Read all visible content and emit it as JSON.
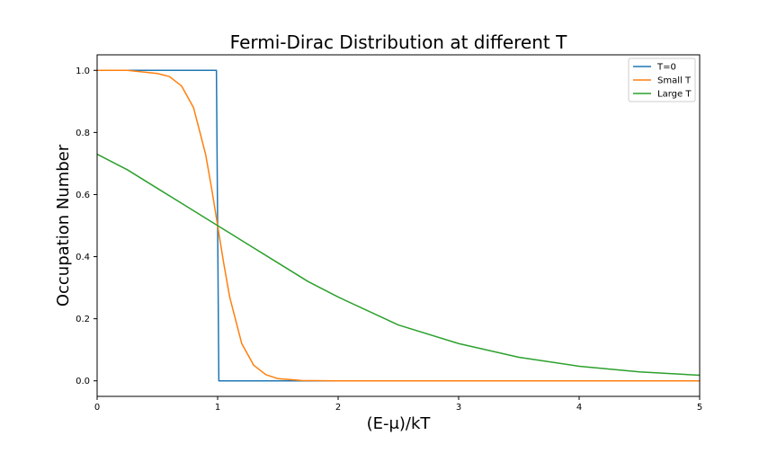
{
  "chart_data": {
    "type": "line",
    "title": "Fermi-Dirac Distribution at different T",
    "xlabel": "(E-μ)/kT",
    "ylabel": "Occupation Number",
    "xlim": [
      0,
      5
    ],
    "ylim": [
      -0.05,
      1.05
    ],
    "x_ticks": [
      "0",
      "1",
      "2",
      "3",
      "4",
      "5"
    ],
    "y_ticks": [
      "0.0",
      "0.2",
      "0.4",
      "0.6",
      "0.8",
      "1.0"
    ],
    "grid": false,
    "legend_position": "top-right",
    "series": [
      {
        "name": "T=0",
        "color": "#1f77b4",
        "points": [
          [
            0,
            1.0
          ],
          [
            0.99,
            1.0
          ],
          [
            1.01,
            0.0
          ],
          [
            5,
            0.0
          ]
        ]
      },
      {
        "name": "Small T",
        "color": "#ff7f0e",
        "points": [
          [
            0,
            1.0
          ],
          [
            0.25,
            1.0
          ],
          [
            0.5,
            0.99
          ],
          [
            0.6,
            0.98
          ],
          [
            0.7,
            0.95
          ],
          [
            0.8,
            0.88
          ],
          [
            0.9,
            0.73
          ],
          [
            0.95,
            0.62
          ],
          [
            1.0,
            0.5
          ],
          [
            1.05,
            0.38
          ],
          [
            1.1,
            0.27
          ],
          [
            1.2,
            0.12
          ],
          [
            1.3,
            0.05
          ],
          [
            1.4,
            0.02
          ],
          [
            1.5,
            0.007
          ],
          [
            1.7,
            0.001
          ],
          [
            2.0,
            0.0
          ],
          [
            5.0,
            0.0
          ]
        ]
      },
      {
        "name": "Large T",
        "color": "#2ca02c",
        "points": [
          [
            0,
            0.73
          ],
          [
            0.25,
            0.68
          ],
          [
            0.5,
            0.62
          ],
          [
            0.75,
            0.56
          ],
          [
            1.0,
            0.5
          ],
          [
            1.25,
            0.44
          ],
          [
            1.5,
            0.38
          ],
          [
            1.75,
            0.32
          ],
          [
            2.0,
            0.27
          ],
          [
            2.5,
            0.18
          ],
          [
            3.0,
            0.12
          ],
          [
            3.5,
            0.076
          ],
          [
            4.0,
            0.047
          ],
          [
            4.5,
            0.029
          ],
          [
            5.0,
            0.018
          ]
        ]
      }
    ]
  }
}
